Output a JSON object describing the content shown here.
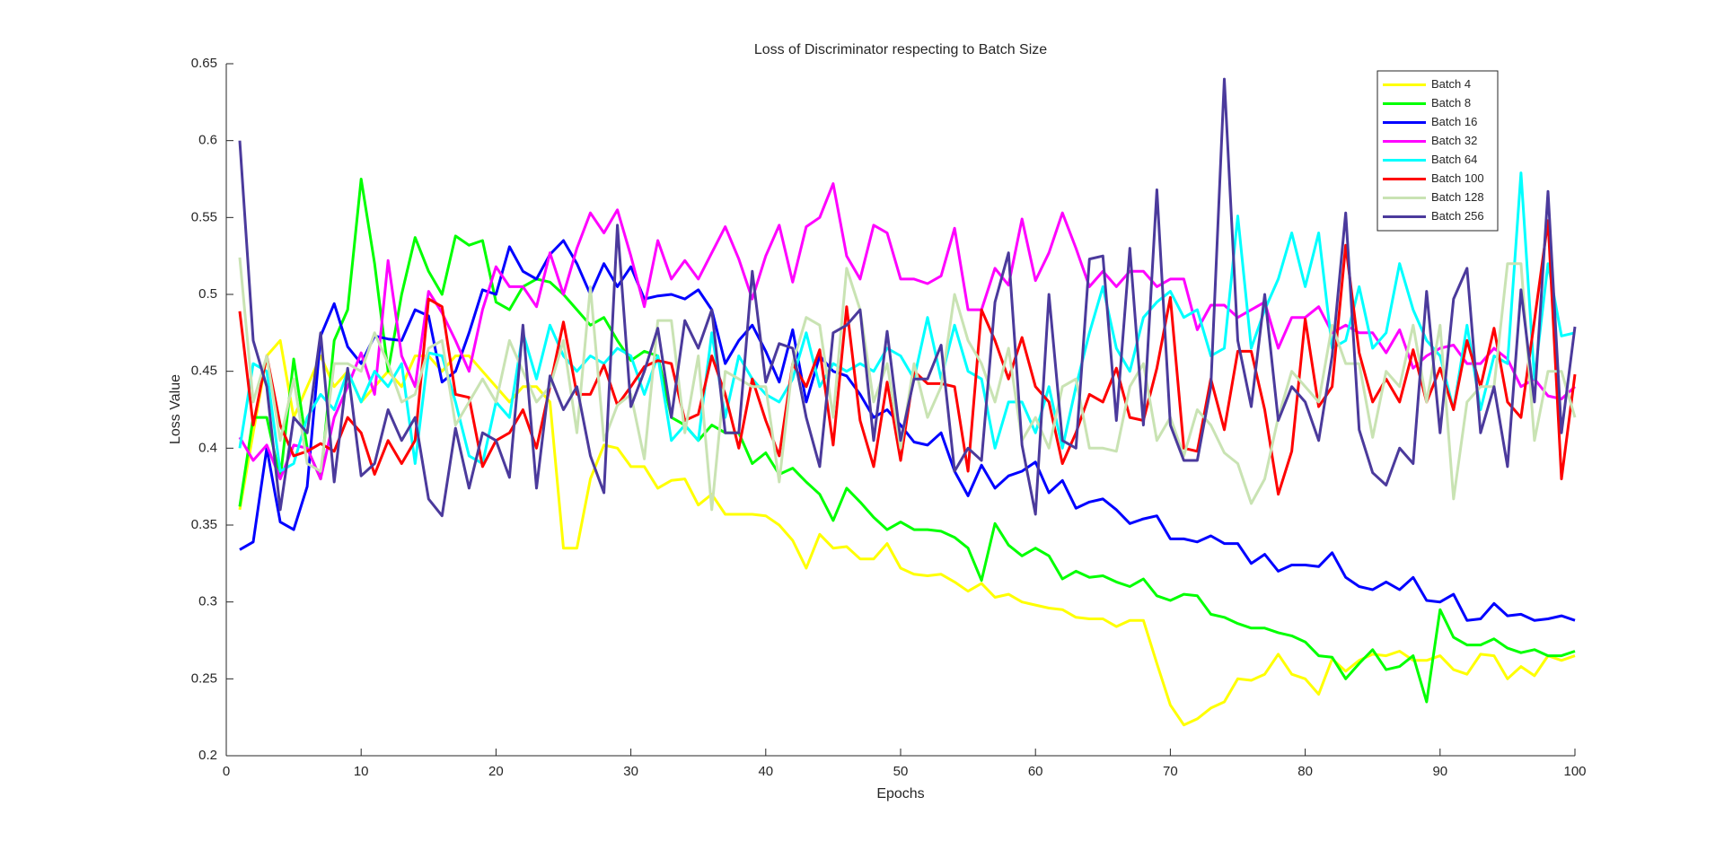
{
  "chart_data": {
    "type": "line",
    "title": "Loss of Discriminator respecting to Batch Size",
    "xlabel": "Epochs",
    "ylabel": "Loss Value",
    "x": [
      1,
      2,
      3,
      4,
      5,
      6,
      7,
      8,
      9,
      10,
      11,
      12,
      13,
      14,
      15,
      16,
      17,
      18,
      19,
      20,
      21,
      22,
      23,
      24,
      25,
      26,
      27,
      28,
      29,
      30,
      31,
      32,
      33,
      34,
      35,
      36,
      37,
      38,
      39,
      40,
      41,
      42,
      43,
      44,
      45,
      46,
      47,
      48,
      49,
      50,
      51,
      52,
      53,
      54,
      55,
      56,
      57,
      58,
      59,
      60,
      61,
      62,
      63,
      64,
      65,
      66,
      67,
      68,
      69,
      70,
      71,
      72,
      73,
      74,
      75,
      76,
      77,
      78,
      79,
      80,
      81,
      82,
      83,
      84,
      85,
      86,
      87,
      88,
      89,
      90,
      91,
      92,
      93,
      94,
      95,
      96,
      97,
      98,
      99,
      100
    ],
    "xlim": [
      0,
      100
    ],
    "xticks": [
      0,
      10,
      20,
      30,
      40,
      50,
      60,
      70,
      80,
      90,
      100
    ],
    "ylim": [
      0.2,
      0.65
    ],
    "yticks": [
      0.2,
      0.25,
      0.3,
      0.35,
      0.4,
      0.45,
      0.5,
      0.55,
      0.6,
      0.65
    ],
    "legend_position": "upper right",
    "series": [
      {
        "name": "Batch 4",
        "color": "#ffff00",
        "values": [
          0.36,
          0.41,
          0.46,
          0.47,
          0.42,
          0.44,
          0.46,
          0.44,
          0.45,
          0.43,
          0.44,
          0.45,
          0.44,
          0.46,
          0.46,
          0.45,
          0.46,
          0.46,
          0.45,
          0.44,
          0.43,
          0.44,
          0.44,
          0.43,
          0.335,
          0.335,
          0.38,
          0.402,
          0.4,
          0.388,
          0.388,
          0.374,
          0.379,
          0.38,
          0.363,
          0.37,
          0.357,
          0.357,
          0.357,
          0.356,
          0.35,
          0.34,
          0.322,
          0.344,
          0.335,
          0.336,
          0.328,
          0.328,
          0.338,
          0.322,
          0.318,
          0.317,
          0.318,
          0.313,
          0.307,
          0.312,
          0.303,
          0.305,
          0.3,
          0.298,
          0.296,
          0.295,
          0.29,
          0.289,
          0.289,
          0.284,
          0.288,
          0.288,
          0.26,
          0.233,
          0.22,
          0.224,
          0.231,
          0.235,
          0.25,
          0.249,
          0.253,
          0.266,
          0.253,
          0.25,
          0.24,
          0.263,
          0.255,
          0.262,
          0.266,
          0.265,
          0.268,
          0.262,
          0.262,
          0.265,
          0.256,
          0.253,
          0.266,
          0.265,
          0.25,
          0.258,
          0.252,
          0.265,
          0.262,
          0.265
        ]
      },
      {
        "name": "Batch 8",
        "color": "#00ff00",
        "values": [
          0.362,
          0.42,
          0.42,
          0.38,
          0.458,
          0.4,
          0.38,
          0.47,
          0.49,
          0.575,
          0.52,
          0.45,
          0.5,
          0.537,
          0.515,
          0.5,
          0.538,
          0.532,
          0.535,
          0.495,
          0.49,
          0.505,
          0.51,
          0.508,
          0.5,
          0.49,
          0.48,
          0.485,
          0.47,
          0.457,
          0.463,
          0.46,
          0.42,
          0.415,
          0.405,
          0.415,
          0.41,
          0.41,
          0.39,
          0.397,
          0.383,
          0.387,
          0.378,
          0.37,
          0.353,
          0.374,
          0.365,
          0.355,
          0.347,
          0.352,
          0.347,
          0.347,
          0.346,
          0.342,
          0.335,
          0.314,
          0.351,
          0.337,
          0.33,
          0.335,
          0.33,
          0.315,
          0.32,
          0.316,
          0.317,
          0.313,
          0.31,
          0.315,
          0.304,
          0.301,
          0.305,
          0.304,
          0.292,
          0.29,
          0.286,
          0.283,
          0.283,
          0.28,
          0.278,
          0.274,
          0.265,
          0.264,
          0.25,
          0.26,
          0.269,
          0.256,
          0.258,
          0.265,
          0.235,
          0.295,
          0.277,
          0.272,
          0.272,
          0.276,
          0.27,
          0.267,
          0.269,
          0.265,
          0.265,
          0.268
        ]
      },
      {
        "name": "Batch 16",
        "color": "#0000ff",
        "values": [
          0.334,
          0.339,
          0.4,
          0.352,
          0.347,
          0.375,
          0.473,
          0.494,
          0.466,
          0.455,
          0.473,
          0.471,
          0.47,
          0.49,
          0.486,
          0.443,
          0.45,
          0.475,
          0.503,
          0.5,
          0.531,
          0.515,
          0.51,
          0.526,
          0.535,
          0.52,
          0.5,
          0.52,
          0.505,
          0.518,
          0.497,
          0.499,
          0.5,
          0.497,
          0.503,
          0.49,
          0.455,
          0.47,
          0.48,
          0.463,
          0.443,
          0.477,
          0.43,
          0.46,
          0.45,
          0.447,
          0.435,
          0.42,
          0.425,
          0.415,
          0.404,
          0.402,
          0.41,
          0.385,
          0.369,
          0.389,
          0.374,
          0.382,
          0.385,
          0.391,
          0.371,
          0.379,
          0.361,
          0.365,
          0.367,
          0.36,
          0.351,
          0.354,
          0.356,
          0.341,
          0.341,
          0.339,
          0.343,
          0.338,
          0.338,
          0.325,
          0.331,
          0.32,
          0.324,
          0.324,
          0.323,
          0.332,
          0.316,
          0.31,
          0.308,
          0.313,
          0.308,
          0.316,
          0.301,
          0.3,
          0.305,
          0.288,
          0.289,
          0.299,
          0.291,
          0.292,
          0.288,
          0.289,
          0.291,
          0.288
        ]
      },
      {
        "name": "Batch 32",
        "color": "#ff00ff",
        "values": [
          0.407,
          0.392,
          0.402,
          0.38,
          0.402,
          0.4,
          0.38,
          0.42,
          0.44,
          0.462,
          0.435,
          0.522,
          0.46,
          0.44,
          0.502,
          0.488,
          0.47,
          0.45,
          0.49,
          0.518,
          0.505,
          0.505,
          0.492,
          0.527,
          0.5,
          0.53,
          0.553,
          0.54,
          0.555,
          0.525,
          0.492,
          0.535,
          0.51,
          0.522,
          0.51,
          0.527,
          0.544,
          0.523,
          0.497,
          0.525,
          0.545,
          0.508,
          0.544,
          0.55,
          0.572,
          0.525,
          0.51,
          0.545,
          0.54,
          0.51,
          0.51,
          0.507,
          0.512,
          0.543,
          0.49,
          0.49,
          0.517,
          0.506,
          0.549,
          0.509,
          0.527,
          0.553,
          0.53,
          0.505,
          0.515,
          0.505,
          0.515,
          0.515,
          0.505,
          0.51,
          0.51,
          0.477,
          0.493,
          0.493,
          0.485,
          0.49,
          0.495,
          0.465,
          0.485,
          0.485,
          0.492,
          0.475,
          0.48,
          0.475,
          0.475,
          0.462,
          0.477,
          0.452,
          0.46,
          0.465,
          0.467,
          0.455,
          0.455,
          0.465,
          0.458,
          0.44,
          0.445,
          0.434,
          0.432,
          0.44
        ]
      },
      {
        "name": "Batch 64",
        "color": "#00ffff",
        "values": [
          0.4,
          0.455,
          0.45,
          0.385,
          0.39,
          0.42,
          0.435,
          0.425,
          0.45,
          0.43,
          0.45,
          0.44,
          0.455,
          0.39,
          0.462,
          0.46,
          0.43,
          0.395,
          0.39,
          0.43,
          0.42,
          0.475,
          0.445,
          0.48,
          0.46,
          0.45,
          0.46,
          0.455,
          0.465,
          0.46,
          0.435,
          0.46,
          0.405,
          0.415,
          0.405,
          0.475,
          0.42,
          0.46,
          0.445,
          0.435,
          0.43,
          0.445,
          0.475,
          0.44,
          0.455,
          0.45,
          0.455,
          0.45,
          0.465,
          0.46,
          0.445,
          0.485,
          0.445,
          0.48,
          0.45,
          0.445,
          0.4,
          0.43,
          0.43,
          0.41,
          0.44,
          0.4,
          0.44,
          0.475,
          0.505,
          0.465,
          0.45,
          0.485,
          0.495,
          0.502,
          0.485,
          0.49,
          0.46,
          0.465,
          0.551,
          0.465,
          0.49,
          0.51,
          0.54,
          0.505,
          0.54,
          0.465,
          0.47,
          0.505,
          0.465,
          0.475,
          0.52,
          0.49,
          0.47,
          0.46,
          0.425,
          0.48,
          0.425,
          0.46,
          0.455,
          0.579,
          0.445,
          0.52,
          0.473,
          0.475
        ]
      },
      {
        "name": "Batch 100",
        "color": "#ff0000",
        "values": [
          0.489,
          0.415,
          0.46,
          0.415,
          0.395,
          0.398,
          0.403,
          0.398,
          0.42,
          0.41,
          0.383,
          0.405,
          0.39,
          0.405,
          0.497,
          0.492,
          0.435,
          0.433,
          0.388,
          0.405,
          0.41,
          0.425,
          0.4,
          0.44,
          0.482,
          0.435,
          0.435,
          0.454,
          0.428,
          0.44,
          0.453,
          0.457,
          0.455,
          0.418,
          0.422,
          0.46,
          0.435,
          0.4,
          0.445,
          0.418,
          0.395,
          0.455,
          0.44,
          0.464,
          0.402,
          0.492,
          0.418,
          0.388,
          0.443,
          0.392,
          0.45,
          0.442,
          0.442,
          0.44,
          0.385,
          0.49,
          0.47,
          0.445,
          0.472,
          0.44,
          0.43,
          0.39,
          0.41,
          0.435,
          0.43,
          0.452,
          0.42,
          0.418,
          0.452,
          0.498,
          0.4,
          0.398,
          0.445,
          0.412,
          0.463,
          0.463,
          0.425,
          0.37,
          0.398,
          0.484,
          0.427,
          0.44,
          0.532,
          0.462,
          0.43,
          0.445,
          0.43,
          0.464,
          0.43,
          0.452,
          0.425,
          0.47,
          0.44,
          0.478,
          0.43,
          0.42,
          0.483,
          0.548,
          0.38,
          0.448
        ]
      },
      {
        "name": "Batch 128",
        "color": "#c9e3b3",
        "values": [
          0.524,
          0.43,
          0.46,
          0.405,
          0.445,
          0.39,
          0.385,
          0.455,
          0.455,
          0.45,
          0.475,
          0.455,
          0.43,
          0.435,
          0.465,
          0.47,
          0.415,
          0.43,
          0.445,
          0.43,
          0.47,
          0.45,
          0.43,
          0.44,
          0.47,
          0.41,
          0.505,
          0.405,
          0.428,
          0.435,
          0.393,
          0.483,
          0.483,
          0.41,
          0.46,
          0.36,
          0.45,
          0.445,
          0.44,
          0.44,
          0.378,
          0.455,
          0.485,
          0.48,
          0.42,
          0.517,
          0.49,
          0.43,
          0.455,
          0.4,
          0.455,
          0.42,
          0.44,
          0.5,
          0.47,
          0.455,
          0.43,
          0.465,
          0.405,
          0.42,
          0.4,
          0.44,
          0.445,
          0.4,
          0.4,
          0.398,
          0.44,
          0.455,
          0.405,
          0.42,
          0.395,
          0.425,
          0.415,
          0.397,
          0.39,
          0.364,
          0.38,
          0.42,
          0.45,
          0.44,
          0.43,
          0.48,
          0.455,
          0.455,
          0.407,
          0.45,
          0.44,
          0.48,
          0.43,
          0.48,
          0.367,
          0.43,
          0.44,
          0.44,
          0.52,
          0.52,
          0.405,
          0.45,
          0.45,
          0.42
        ]
      },
      {
        "name": "Batch 256",
        "color": "#4b3a9c",
        "values": [
          0.6,
          0.47,
          0.44,
          0.36,
          0.42,
          0.41,
          0.475,
          0.378,
          0.452,
          0.382,
          0.39,
          0.425,
          0.405,
          0.42,
          0.367,
          0.356,
          0.413,
          0.374,
          0.41,
          0.405,
          0.381,
          0.48,
          0.374,
          0.447,
          0.425,
          0.44,
          0.395,
          0.371,
          0.545,
          0.427,
          0.45,
          0.478,
          0.42,
          0.483,
          0.465,
          0.49,
          0.41,
          0.41,
          0.515,
          0.443,
          0.468,
          0.465,
          0.42,
          0.388,
          0.475,
          0.48,
          0.49,
          0.405,
          0.476,
          0.405,
          0.445,
          0.445,
          0.467,
          0.385,
          0.4,
          0.392,
          0.495,
          0.527,
          0.402,
          0.357,
          0.5,
          0.405,
          0.4,
          0.523,
          0.525,
          0.418,
          0.53,
          0.415,
          0.568,
          0.415,
          0.392,
          0.392,
          0.44,
          0.64,
          0.47,
          0.427,
          0.5,
          0.418,
          0.44,
          0.43,
          0.405,
          0.46,
          0.553,
          0.412,
          0.384,
          0.376,
          0.4,
          0.39,
          0.502,
          0.41,
          0.497,
          0.517,
          0.41,
          0.44,
          0.388,
          0.503,
          0.43,
          0.567,
          0.41,
          0.479
        ]
      }
    ]
  }
}
